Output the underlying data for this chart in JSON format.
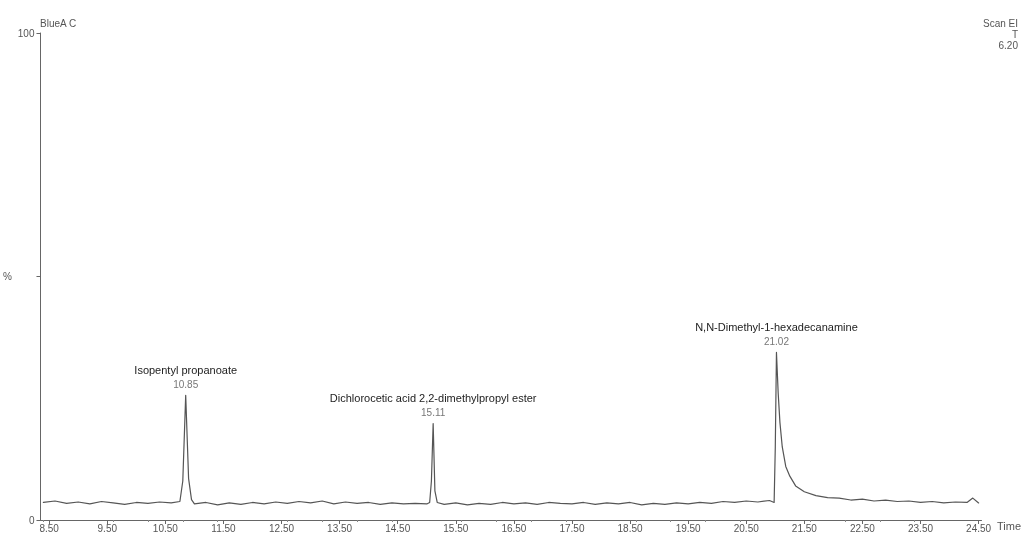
{
  "chart_data": {
    "type": "line",
    "xlabel": "Time",
    "ylabel": "%",
    "annotations": [
      "BlueA C",
      "Scan EI",
      "T",
      "6.20",
      {
        "text": "Isopentyl propanoate",
        "x": 10.85,
        "y": 25.6
      },
      {
        "text": "10.85",
        "x": 10.85,
        "y": 25.6
      },
      {
        "text": "Dichlorocetic acid 2,2-dimethylpropyl ester",
        "x": 15.11,
        "y": 19.8
      },
      {
        "text": "15.11",
        "x": 15.11,
        "y": 19.8
      },
      {
        "text": "N,N-Dimethyl-1-hexadecanamine",
        "x": 21.02,
        "y": 34.4
      },
      {
        "text": "21.02",
        "x": 21.02,
        "y": 34.4
      }
    ],
    "xlim": [
      8.35,
      24.55
    ],
    "ylim": [
      0,
      100
    ],
    "xticks": [
      {
        "value": 8.5,
        "label": "8.50"
      },
      {
        "value": 9.5,
        "label": "9.50"
      },
      {
        "value": 10.5,
        "label": "10.50"
      },
      {
        "value": 11.5,
        "label": "11.50"
      },
      {
        "value": 12.5,
        "label": "12.50"
      },
      {
        "value": 13.5,
        "label": "13.50"
      },
      {
        "value": 14.5,
        "label": "14.50"
      },
      {
        "value": 15.5,
        "label": "15.50"
      },
      {
        "value": 16.5,
        "label": "16.50"
      },
      {
        "value": 17.5,
        "label": "17.50"
      },
      {
        "value": 18.5,
        "label": "18.50"
      },
      {
        "value": 19.5,
        "label": "19.50"
      },
      {
        "value": 20.5,
        "label": "20.50"
      },
      {
        "value": 21.5,
        "label": "21.50"
      },
      {
        "value": 22.5,
        "label": "22.50"
      },
      {
        "value": 23.5,
        "label": "23.50"
      },
      {
        "value": 24.5,
        "label": "24.50"
      }
    ],
    "yticks": [
      0,
      {
        "value": 50,
        "label": null
      },
      100
    ],
    "grid": false,
    "marker": "none",
    "line_style": "solid",
    "series": [
      {
        "color": "#555555",
        "x": [
          8.4,
          8.6,
          8.8,
          9.0,
          9.2,
          9.4,
          9.6,
          9.8,
          10.0,
          10.2,
          10.4,
          10.6,
          10.75,
          10.8,
          10.85,
          10.9,
          10.95,
          11.0,
          11.2,
          11.4,
          11.6,
          11.8,
          12.0,
          12.2,
          12.4,
          12.6,
          12.8,
          13.0,
          13.2,
          13.4,
          13.6,
          13.8,
          14.0,
          14.2,
          14.4,
          14.6,
          14.8,
          15.0,
          15.05,
          15.08,
          15.11,
          15.14,
          15.18,
          15.3,
          15.5,
          15.7,
          15.9,
          16.1,
          16.3,
          16.5,
          16.7,
          16.9,
          17.1,
          17.3,
          17.5,
          17.7,
          17.9,
          18.1,
          18.3,
          18.5,
          18.7,
          18.9,
          19.1,
          19.3,
          19.5,
          19.7,
          19.9,
          20.1,
          20.3,
          20.5,
          20.7,
          20.9,
          20.98,
          21.0,
          21.02,
          21.05,
          21.08,
          21.12,
          21.18,
          21.25,
          21.35,
          21.5,
          21.7,
          21.9,
          22.1,
          22.3,
          22.5,
          22.7,
          22.9,
          23.1,
          23.3,
          23.5,
          23.7,
          23.9,
          24.1,
          24.3,
          24.4,
          24.5
        ],
        "values": [
          3.6,
          3.9,
          3.4,
          3.7,
          3.3,
          3.8,
          3.5,
          3.2,
          3.6,
          3.4,
          3.7,
          3.5,
          3.8,
          8.0,
          25.6,
          8.5,
          4.2,
          3.3,
          3.6,
          3.1,
          3.5,
          3.2,
          3.6,
          3.3,
          3.7,
          3.4,
          3.8,
          3.5,
          3.9,
          3.3,
          3.7,
          3.4,
          3.6,
          3.2,
          3.5,
          3.3,
          3.4,
          3.3,
          3.6,
          8.0,
          19.8,
          6.0,
          3.6,
          3.2,
          3.5,
          3.1,
          3.4,
          3.2,
          3.6,
          3.3,
          3.5,
          3.2,
          3.6,
          3.4,
          3.3,
          3.6,
          3.2,
          3.5,
          3.3,
          3.6,
          3.1,
          3.4,
          3.2,
          3.5,
          3.3,
          3.6,
          3.4,
          3.8,
          3.6,
          3.9,
          3.7,
          4.0,
          3.6,
          15.0,
          34.4,
          26.0,
          20.0,
          15.0,
          11.0,
          9.0,
          7.0,
          5.8,
          5.0,
          4.6,
          4.5,
          4.1,
          4.3,
          3.9,
          4.1,
          3.8,
          3.9,
          3.6,
          3.8,
          3.5,
          3.7,
          3.6,
          4.5,
          3.5
        ]
      }
    ]
  }
}
